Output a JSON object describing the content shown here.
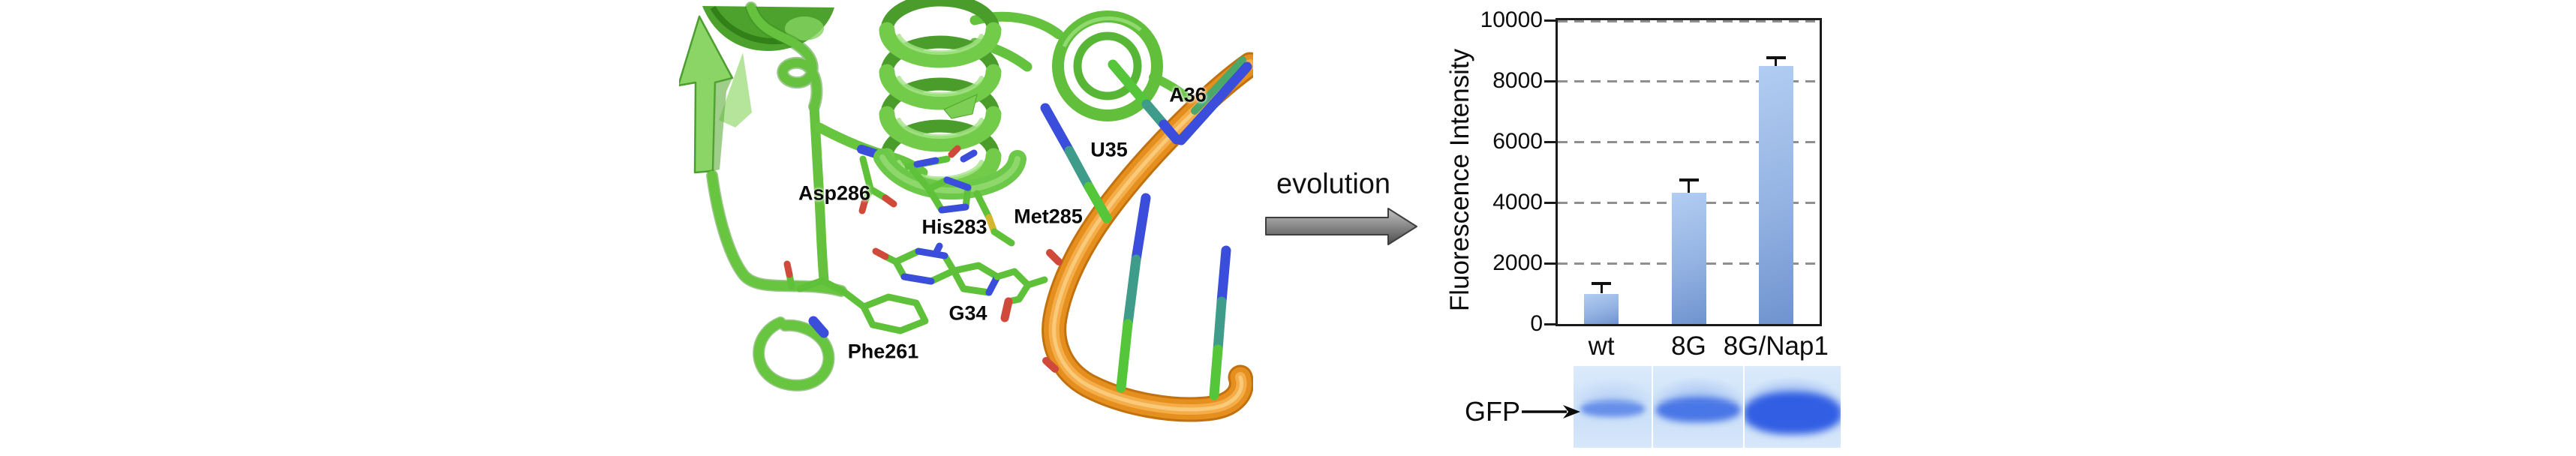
{
  "structure_panel": {
    "residue_labels": {
      "asp286": "Asp286",
      "his283": "His283",
      "met285": "Met285",
      "g34": "G34",
      "phe261": "Phe261",
      "u35": "U35",
      "a36": "A36"
    }
  },
  "transition": {
    "label": "evolution"
  },
  "chart_data": {
    "type": "bar",
    "title": "",
    "xlabel": "",
    "ylabel": "Fluorescence Intensity",
    "categories": [
      "wt",
      "8G",
      "8G/Nap1"
    ],
    "values": [
      1000,
      4320,
      8490
    ],
    "error_upper": [
      1340,
      4730,
      8760
    ],
    "ylim": [
      0,
      10000
    ],
    "yticks": [
      0,
      2000,
      4000,
      6000,
      8000,
      10000
    ],
    "grid": "horizontal-dashed",
    "legend": "none",
    "bar_color_top": "#b2cdf2",
    "bar_color_bottom": "#6f93cf"
  },
  "gel": {
    "label": "GFP",
    "lanes": [
      {
        "name": "wt",
        "band_intensity": "faint"
      },
      {
        "name": "8G",
        "band_intensity": "medium"
      },
      {
        "name": "8G/Nap1",
        "band_intensity": "strong"
      }
    ]
  },
  "colors": {
    "protein_ribbon_green": "#6ac340",
    "rna_backbone_orange": "#e58f1f",
    "nitrogen_blue": "#3a4ddb",
    "oxygen_red": "#cf4a3a",
    "sulfur_yellow": "#d4b62e",
    "gel_background": "#cfe3f8",
    "gel_band_blue": "#3568e4",
    "axis_black": "#1b1b1b",
    "grid_gray": "#8f8f8f"
  }
}
